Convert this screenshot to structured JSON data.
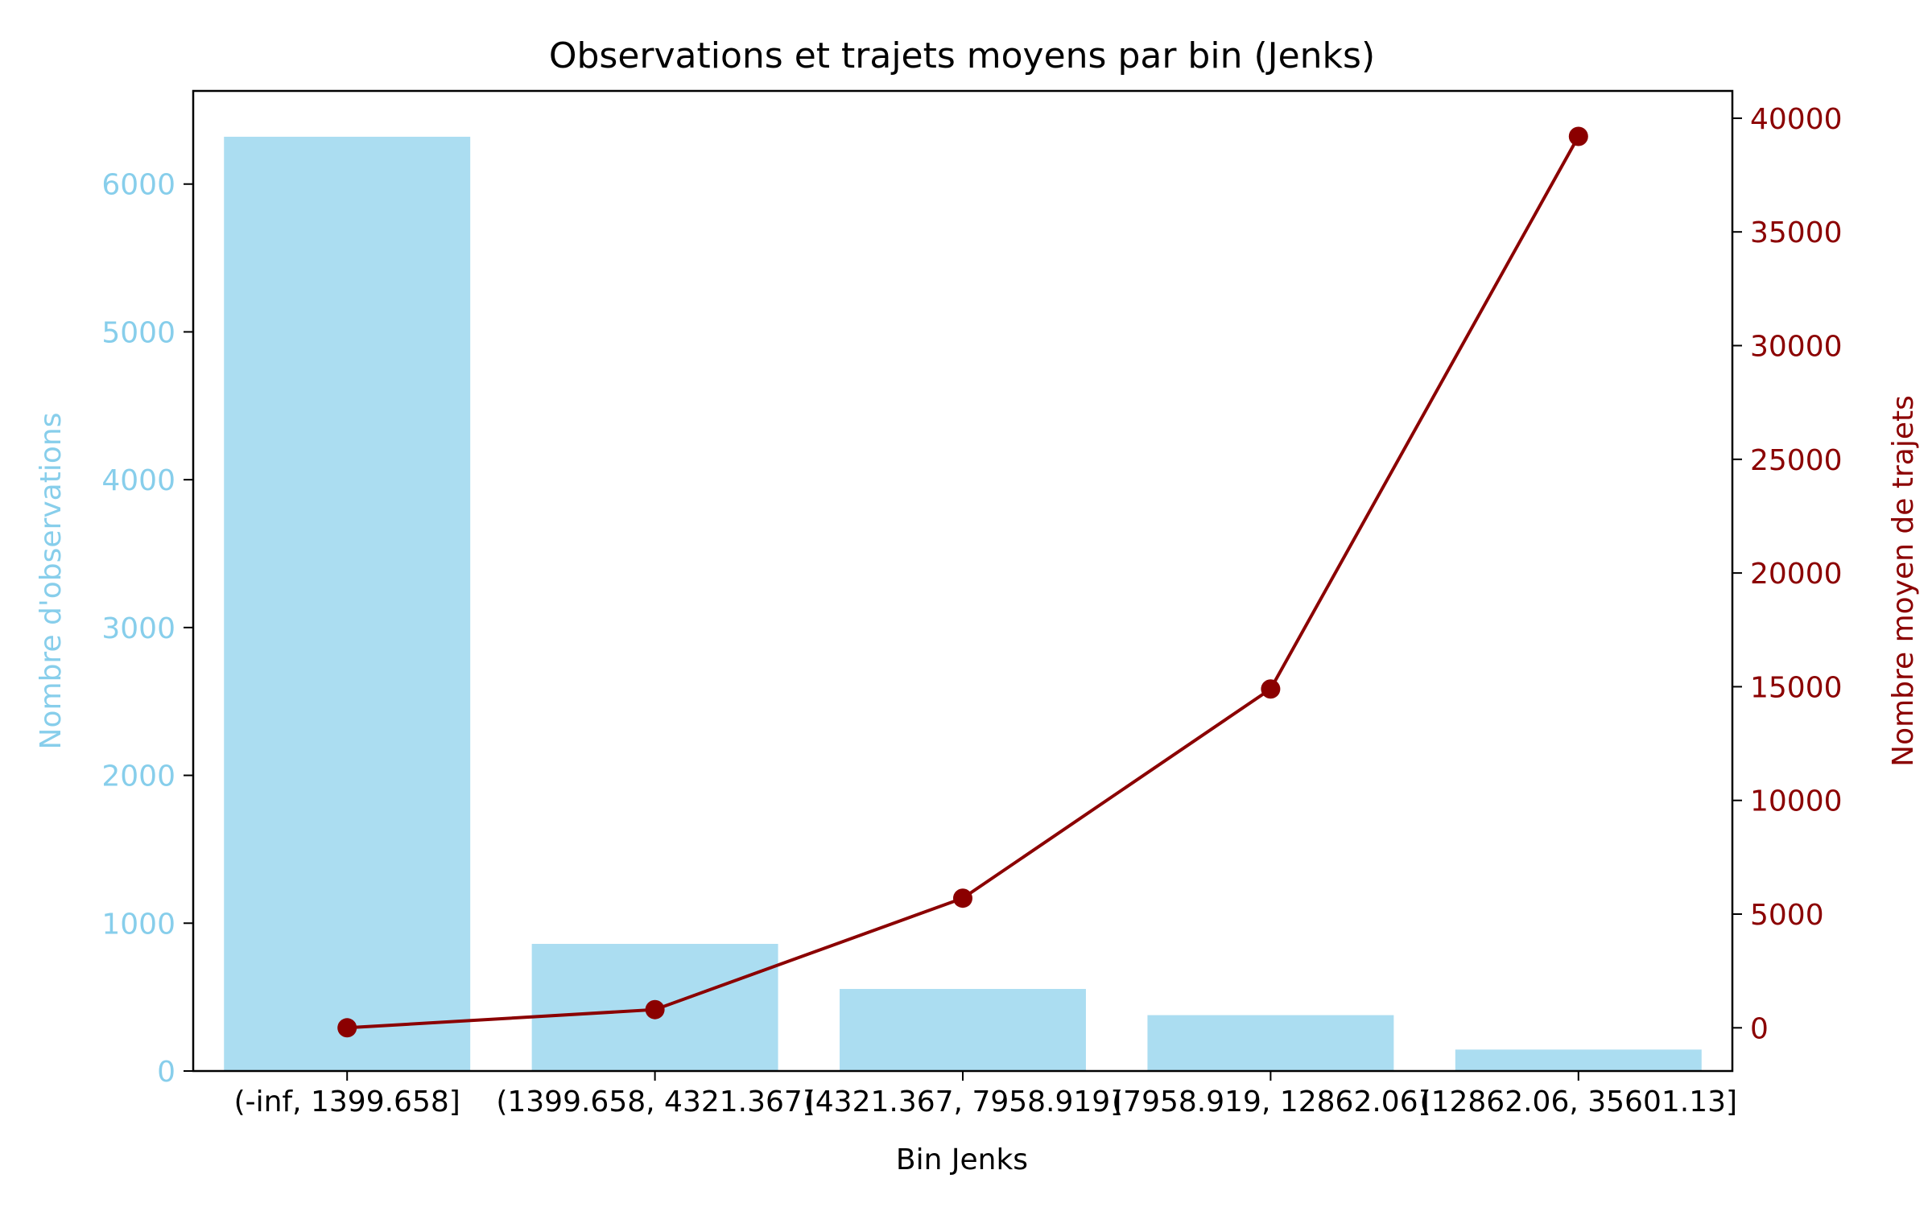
{
  "chart_data": {
    "type": "bar+line",
    "title": "Observations et trajets moyens par bin (Jenks)",
    "xlabel": "Bin Jenks",
    "categories": [
      "(-inf, 1399.658]",
      "(1399.658, 4321.367]",
      "(4321.367, 7958.919]",
      "(7958.919, 12862.06]",
      "(12862.06, 35601.13]"
    ],
    "left_axis": {
      "label": "Nombre d'observations",
      "ylim": [
        0,
        6630
      ],
      "ticks": [
        0,
        1000,
        2000,
        3000,
        4000,
        5000,
        6000
      ],
      "color": "#87CEEB"
    },
    "right_axis": {
      "label": "Nombre moyen de trajets",
      "ylim": [
        -1900,
        41200
      ],
      "ticks": [
        0,
        5000,
        10000,
        15000,
        20000,
        25000,
        30000,
        35000,
        40000
      ],
      "color": "#8B0000"
    },
    "bars": {
      "values": [
        6320,
        860,
        555,
        378,
        145
      ],
      "color": "#87CEEB"
    },
    "line": {
      "values": [
        0,
        800,
        5700,
        14900,
        39200
      ],
      "color": "#8B0000"
    },
    "grid": false
  }
}
